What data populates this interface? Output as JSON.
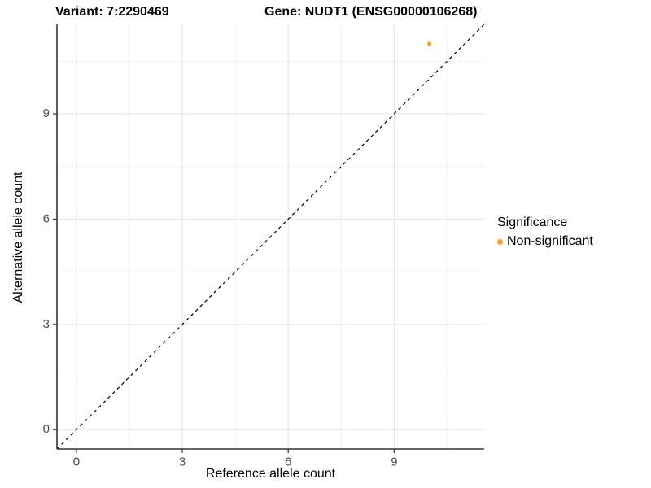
{
  "titles": {
    "variant": "Variant: 7:2290469",
    "gene": "Gene: NUDT1 (ENSG00000106268)"
  },
  "chart_data": {
    "type": "scatter",
    "xlabel": "Reference allele count",
    "ylabel": "Alternative allele count",
    "x_ticks": [
      0,
      3,
      6,
      9
    ],
    "y_ticks": [
      0,
      3,
      6,
      9
    ],
    "minor_ticks": [
      1.5,
      4.5,
      7.5,
      10.5
    ],
    "xlim": [
      -0.55,
      11.55
    ],
    "ylim": [
      -0.55,
      11.55
    ],
    "grid": true,
    "identity_line": {
      "style": "dashed",
      "slope": 1,
      "intercept": 0
    },
    "series": [
      {
        "name": "Non-significant",
        "color": "#F9A02C",
        "points": [
          {
            "x": 10,
            "y": 11
          }
        ]
      }
    ],
    "colors": {
      "major_grid": "#E3E3E3",
      "minor_grid": "#F1F1F1",
      "axis_line": "#333333",
      "tick_label": "#4D4D4D",
      "identity_line": "#000000"
    }
  },
  "legend": {
    "title": "Significance",
    "items": [
      {
        "label": "Non-significant",
        "color": "#F9A02C",
        "marker": "circle"
      }
    ],
    "position": "right"
  }
}
